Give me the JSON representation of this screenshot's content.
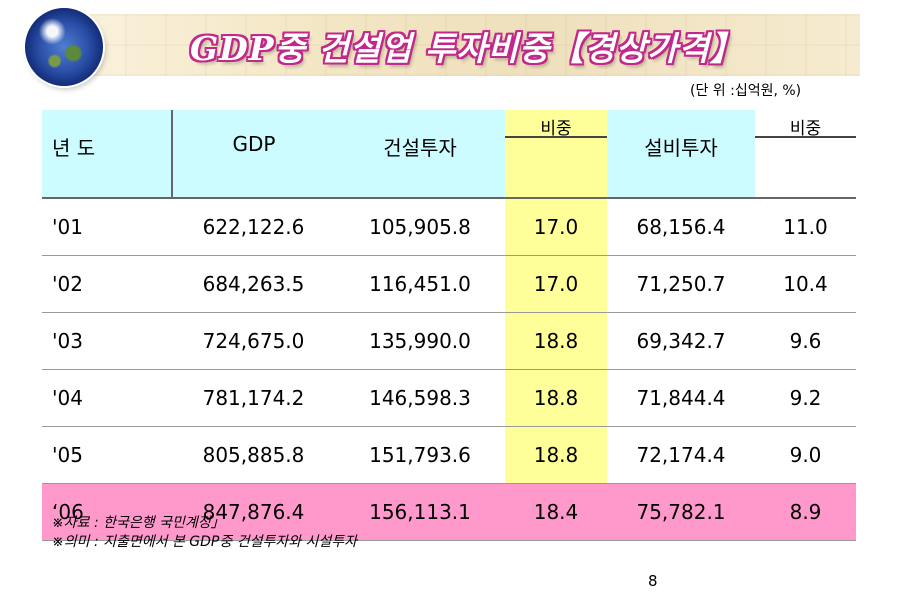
{
  "title": "GDP중 건설업 투자비중【경상가격】",
  "unit": "(단 위 :십억원, %)",
  "table": {
    "headers": {
      "year": "년 도",
      "gdp": "GDP",
      "construction": "건설투자",
      "ratio1": "비중",
      "equipment": "설비투자",
      "ratio2": "비중"
    },
    "rows": [
      {
        "year": "'01",
        "gdp": "622,122.6",
        "construction": "105,905.8",
        "ratio1": "17.0",
        "equipment": "68,156.4",
        "ratio2": "11.0"
      },
      {
        "year": "'02",
        "gdp": "684,263.5",
        "construction": "116,451.0",
        "ratio1": "17.0",
        "equipment": "71,250.7",
        "ratio2": "10.4"
      },
      {
        "year": "'03",
        "gdp": "724,675.0",
        "construction": "135,990.0",
        "ratio1": "18.8",
        "equipment": "69,342.7",
        "ratio2": "9.6"
      },
      {
        "year": "'04",
        "gdp": "781,174.2",
        "construction": "146,598.3",
        "ratio1": "18.8",
        "equipment": "71,844.4",
        "ratio2": "9.2"
      },
      {
        "year": "'05",
        "gdp": "805,885.8",
        "construction": "151,793.6",
        "ratio1": "18.8",
        "equipment": "72,174.4",
        "ratio2": "9.0"
      },
      {
        "year": "‘06",
        "gdp": "847,876.4",
        "construction": "156,113.1",
        "ratio1": "18.4",
        "equipment": "75,782.1",
        "ratio2": "8.9"
      }
    ]
  },
  "notes": [
    "※자료 : 한국은행 국민계정」",
    "※의미 : 지출면에서 본 GDP중 건설투자와 시설투자"
  ],
  "page_number": "8",
  "colors": {
    "header_bg": "#ccfcff",
    "highlight_column": "#ffff99",
    "highlight_row": "#ff99cc",
    "title_outline": "#c0288a"
  },
  "icons": [
    "globe-icon"
  ]
}
